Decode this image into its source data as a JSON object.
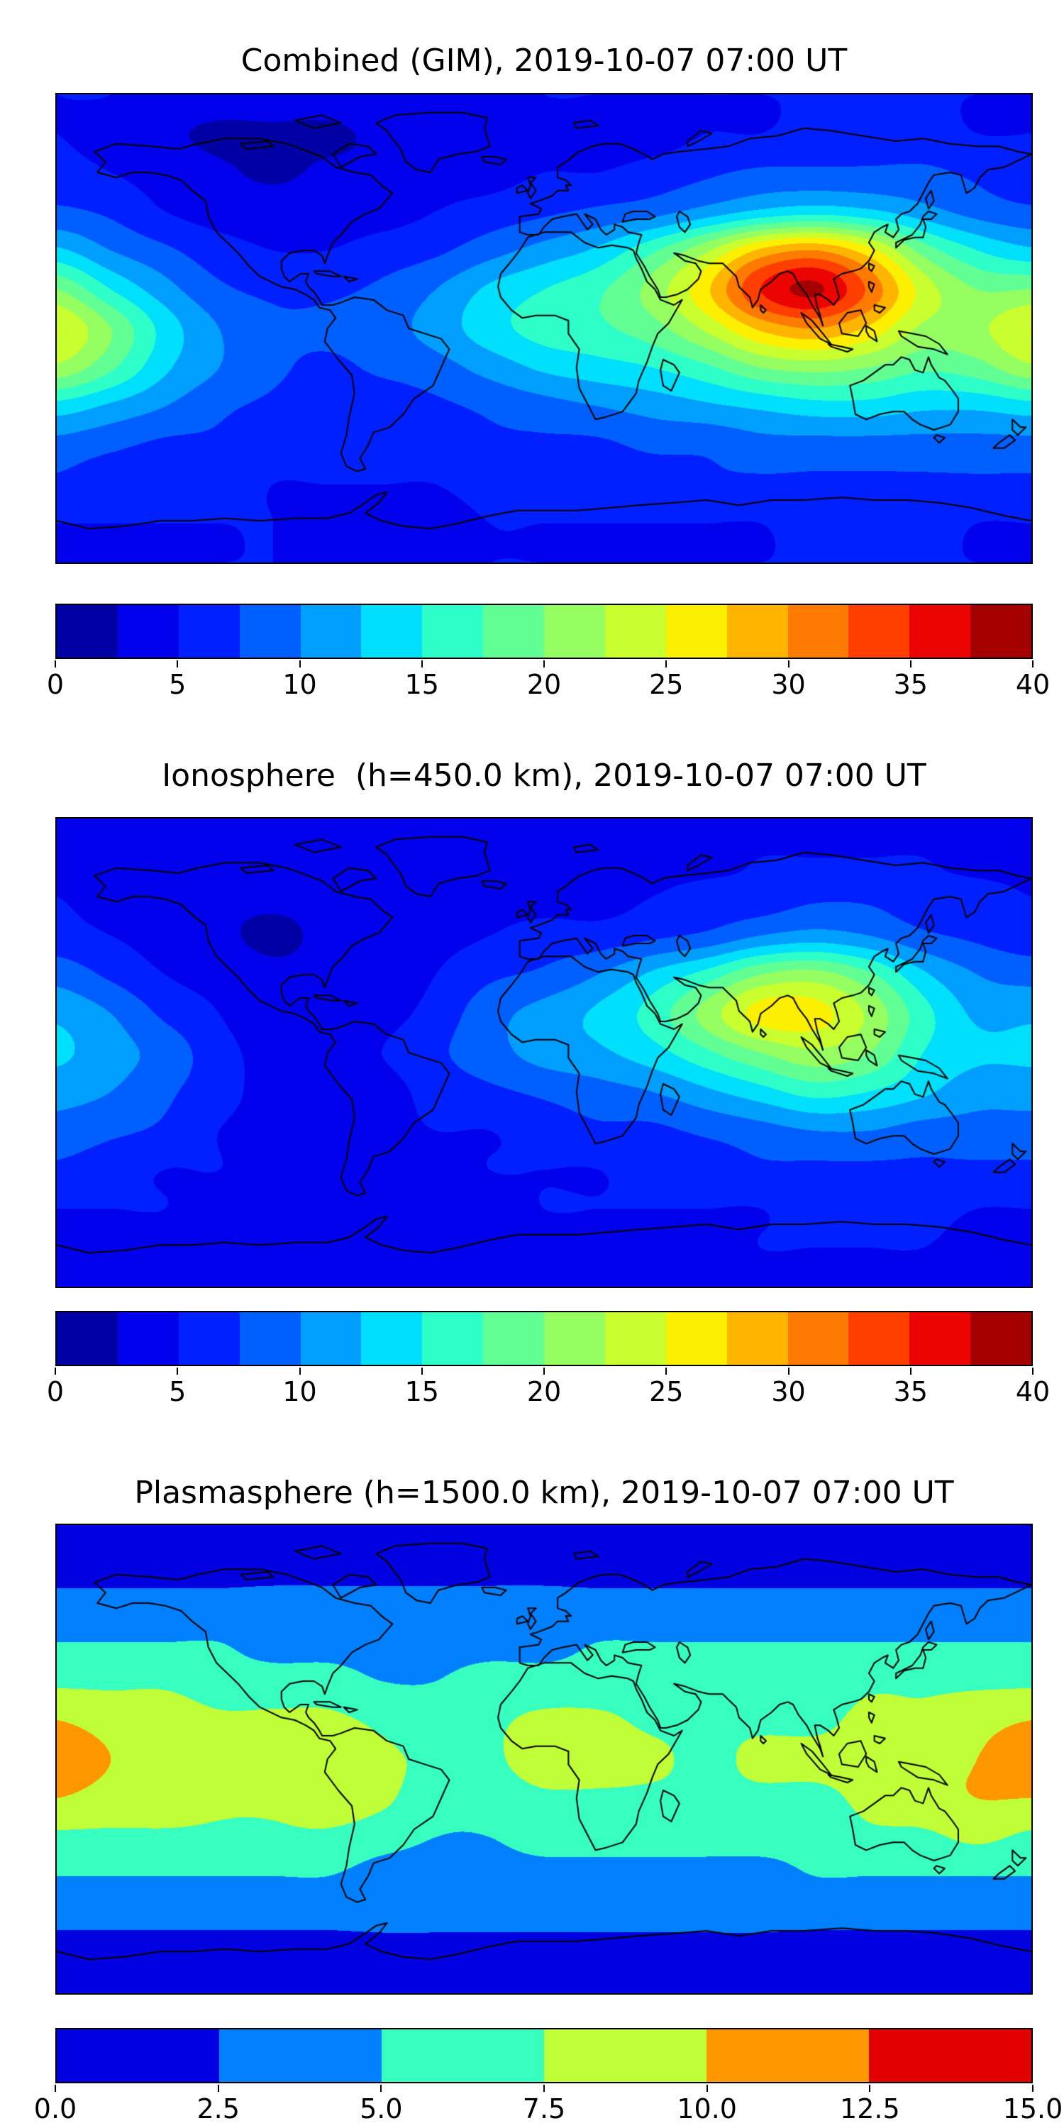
{
  "figure": {
    "background": "#ffffff",
    "text_color": "#000000"
  },
  "chart_data": [
    {
      "type": "heatmap",
      "title": "Combined (GIM), 2019-10-07 07:00 UT",
      "projection": "equirectangular world map with coastlines",
      "colormap": "jet",
      "grid": false,
      "levels": {
        "min": 0,
        "max": 40,
        "step": 2.5
      },
      "colorbar_ticks": [
        "0",
        "5",
        "10",
        "15",
        "20",
        "25",
        "30",
        "35",
        "40"
      ],
      "lon": [
        -180,
        -160,
        -140,
        -120,
        -100,
        -80,
        -60,
        -40,
        -20,
        0,
        20,
        40,
        60,
        80,
        100,
        120,
        140,
        160,
        180
      ],
      "lat": [
        90,
        75,
        60,
        45,
        30,
        15,
        0,
        -15,
        -30,
        -45,
        -60,
        -75,
        -90
      ],
      "values": [
        [
          5,
          5,
          4,
          4,
          4,
          4,
          4,
          4,
          4,
          5,
          5,
          5,
          5,
          5,
          5,
          5,
          5,
          5,
          5
        ],
        [
          5,
          4,
          3,
          2,
          2,
          2,
          3,
          3,
          3,
          4,
          4,
          4,
          5,
          5,
          6,
          6,
          6,
          5,
          5
        ],
        [
          6,
          5,
          4,
          3,
          2,
          3,
          3,
          4,
          4,
          5,
          5,
          6,
          7,
          8,
          8,
          8,
          8,
          7,
          6
        ],
        [
          8,
          7,
          5,
          4,
          4,
          4,
          4,
          5,
          6,
          7,
          8,
          9,
          11,
          13,
          14,
          13,
          11,
          9,
          8
        ],
        [
          13,
          10,
          8,
          6,
          5,
          5,
          6,
          7,
          9,
          11,
          13,
          17,
          22,
          28,
          30,
          26,
          19,
          15,
          13
        ],
        [
          20,
          15,
          11,
          8,
          7,
          7,
          8,
          10,
          13,
          15,
          17,
          21,
          27,
          35,
          38,
          32,
          24,
          20,
          20
        ],
        [
          25,
          20,
          14,
          10,
          8,
          8,
          9,
          11,
          14,
          16,
          17,
          19,
          23,
          28,
          30,
          27,
          22,
          22,
          25
        ],
        [
          22,
          18,
          13,
          10,
          8,
          7,
          8,
          9,
          11,
          13,
          14,
          15,
          17,
          20,
          21,
          20,
          18,
          19,
          22
        ],
        [
          14,
          12,
          10,
          8,
          7,
          6,
          6,
          7,
          8,
          9,
          10,
          11,
          12,
          13,
          14,
          14,
          13,
          13,
          14
        ],
        [
          9,
          8,
          7,
          7,
          6,
          6,
          6,
          6,
          7,
          7,
          7,
          8,
          8,
          9,
          9,
          9,
          9,
          9,
          9
        ],
        [
          7,
          6,
          6,
          6,
          5,
          5,
          5,
          5,
          6,
          6,
          6,
          6,
          7,
          7,
          7,
          7,
          7,
          7,
          7
        ],
        [
          5,
          5,
          5,
          5,
          5,
          4,
          4,
          4,
          5,
          5,
          5,
          5,
          5,
          5,
          6,
          6,
          6,
          5,
          5
        ],
        [
          5,
          5,
          5,
          5,
          5,
          5,
          5,
          5,
          5,
          5,
          5,
          5,
          5,
          5,
          5,
          5,
          5,
          5,
          5
        ]
      ]
    },
    {
      "type": "heatmap",
      "title": "Ionosphere  (h=450.0 km), 2019-10-07 07:00 UT",
      "projection": "equirectangular world map with coastlines",
      "colormap": "jet",
      "grid": false,
      "levels": {
        "min": 0,
        "max": 40,
        "step": 2.5
      },
      "colorbar_ticks": [
        "0",
        "5",
        "10",
        "15",
        "20",
        "25",
        "30",
        "35",
        "40"
      ],
      "lon": [
        -180,
        -160,
        -140,
        -120,
        -100,
        -80,
        -60,
        -40,
        -20,
        0,
        20,
        40,
        60,
        80,
        100,
        120,
        140,
        160,
        180
      ],
      "lat": [
        90,
        75,
        60,
        45,
        30,
        15,
        0,
        -15,
        -30,
        -45,
        -60,
        -75,
        -90
      ],
      "values": [
        [
          4,
          4,
          4,
          4,
          4,
          4,
          4,
          4,
          4,
          4,
          4,
          4,
          4,
          4,
          4,
          4,
          4,
          4,
          4
        ],
        [
          4,
          4,
          3,
          3,
          3,
          3,
          3,
          3,
          4,
          4,
          4,
          4,
          4,
          5,
          5,
          5,
          5,
          4,
          4
        ],
        [
          5,
          4,
          4,
          3,
          3,
          3,
          3,
          3,
          4,
          4,
          4,
          5,
          6,
          6,
          7,
          7,
          6,
          6,
          5
        ],
        [
          6,
          5,
          4,
          3,
          2,
          3,
          3,
          4,
          5,
          6,
          6,
          7,
          8,
          10,
          11,
          10,
          8,
          7,
          6
        ],
        [
          9,
          7,
          5,
          4,
          3,
          3,
          3,
          5,
          7,
          8,
          10,
          13,
          16,
          20,
          21,
          18,
          13,
          10,
          9
        ],
        [
          12,
          10,
          7,
          5,
          3,
          3,
          4,
          6,
          9,
          11,
          13,
          16,
          21,
          26,
          26,
          22,
          16,
          12,
          12
        ],
        [
          13,
          11,
          9,
          6,
          4,
          4,
          5,
          7,
          9,
          11,
          12,
          14,
          17,
          20,
          22,
          20,
          15,
          13,
          13
        ],
        [
          11,
          10,
          8,
          6,
          4,
          4,
          4,
          6,
          7,
          8,
          9,
          10,
          12,
          14,
          16,
          15,
          13,
          11,
          11
        ],
        [
          9,
          8,
          7,
          5,
          4,
          3,
          4,
          5,
          5,
          6,
          7,
          7,
          8,
          9,
          10,
          10,
          9,
          9,
          9
        ],
        [
          7,
          6,
          5,
          5,
          4,
          4,
          4,
          4,
          5,
          5,
          5,
          6,
          6,
          7,
          7,
          7,
          7,
          7,
          7
        ],
        [
          5,
          5,
          5,
          4,
          4,
          4,
          4,
          4,
          4,
          5,
          5,
          5,
          5,
          5,
          6,
          6,
          6,
          5,
          5
        ],
        [
          4,
          4,
          4,
          4,
          4,
          4,
          4,
          4,
          4,
          4,
          4,
          4,
          4,
          5,
          5,
          5,
          5,
          4,
          4
        ],
        [
          4,
          4,
          4,
          4,
          4,
          4,
          4,
          4,
          4,
          4,
          4,
          4,
          4,
          4,
          4,
          4,
          4,
          4,
          4
        ]
      ]
    },
    {
      "type": "heatmap",
      "title": "Plasmasphere (h=1500.0 km), 2019-10-07 07:00 UT",
      "projection": "equirectangular world map with coastlines",
      "colormap": "jet",
      "grid": false,
      "levels": {
        "min": 0,
        "max": 15,
        "step": 2.5
      },
      "colorbar_ticks": [
        "0.0",
        "2.5",
        "5.0",
        "7.5",
        "10.0",
        "12.5",
        "15.0"
      ],
      "lon": [
        -180,
        -160,
        -140,
        -120,
        -100,
        -80,
        -60,
        -40,
        -20,
        0,
        20,
        40,
        60,
        80,
        100,
        120,
        140,
        160,
        180
      ],
      "lat": [
        90,
        75,
        60,
        45,
        30,
        15,
        0,
        -15,
        -30,
        -45,
        -60,
        -75,
        -90
      ],
      "values": [
        [
          2,
          2,
          2,
          2,
          2,
          2,
          2,
          2,
          2,
          2,
          2,
          2,
          2,
          2,
          2,
          2,
          2,
          2,
          2
        ],
        [
          2,
          2,
          2,
          2,
          2,
          2,
          2,
          2,
          2,
          2,
          2,
          2,
          2,
          2,
          2,
          2,
          2,
          2,
          2
        ],
        [
          3,
          3,
          3,
          3,
          3,
          3,
          3,
          3,
          3,
          3,
          3,
          3,
          3,
          3,
          3,
          3,
          3,
          3,
          3
        ],
        [
          5,
          5,
          5,
          5,
          4,
          4,
          4,
          4,
          4,
          4,
          5,
          5,
          5,
          5,
          5,
          5,
          5,
          5,
          5
        ],
        [
          7,
          7,
          7,
          6,
          6,
          6,
          5,
          5,
          6,
          6,
          6,
          6,
          6,
          6,
          6,
          7,
          7,
          7,
          7
        ],
        [
          10,
          9,
          9,
          8,
          8,
          8,
          7,
          6,
          7,
          8,
          8,
          7,
          7,
          7,
          7,
          8,
          8,
          9,
          10
        ],
        [
          12,
          10,
          9,
          9,
          9,
          9,
          8,
          7,
          7,
          9,
          9,
          8,
          7,
          8,
          8,
          8,
          9,
          10,
          12
        ],
        [
          10,
          9,
          9,
          8,
          8,
          9,
          8,
          6,
          6,
          7,
          7,
          7,
          7,
          7,
          7,
          8,
          9,
          10,
          10
        ],
        [
          7,
          7,
          7,
          7,
          7,
          7,
          6,
          5,
          5,
          6,
          6,
          6,
          6,
          6,
          6,
          7,
          7,
          8,
          7
        ],
        [
          5,
          5,
          5,
          5,
          5,
          5,
          4,
          4,
          4,
          4,
          4,
          4,
          4,
          4,
          5,
          5,
          5,
          5,
          5
        ],
        [
          3,
          3,
          3,
          3,
          3,
          3,
          3,
          3,
          3,
          3,
          3,
          3,
          3,
          3,
          3,
          3,
          3,
          3,
          3
        ],
        [
          2,
          2,
          2,
          2,
          2,
          2,
          2,
          2,
          2,
          2,
          2,
          2,
          2,
          2,
          2,
          2,
          2,
          2,
          2
        ],
        [
          2,
          2,
          2,
          2,
          2,
          2,
          2,
          2,
          2,
          2,
          2,
          2,
          2,
          2,
          2,
          2,
          2,
          2,
          2
        ]
      ]
    }
  ]
}
